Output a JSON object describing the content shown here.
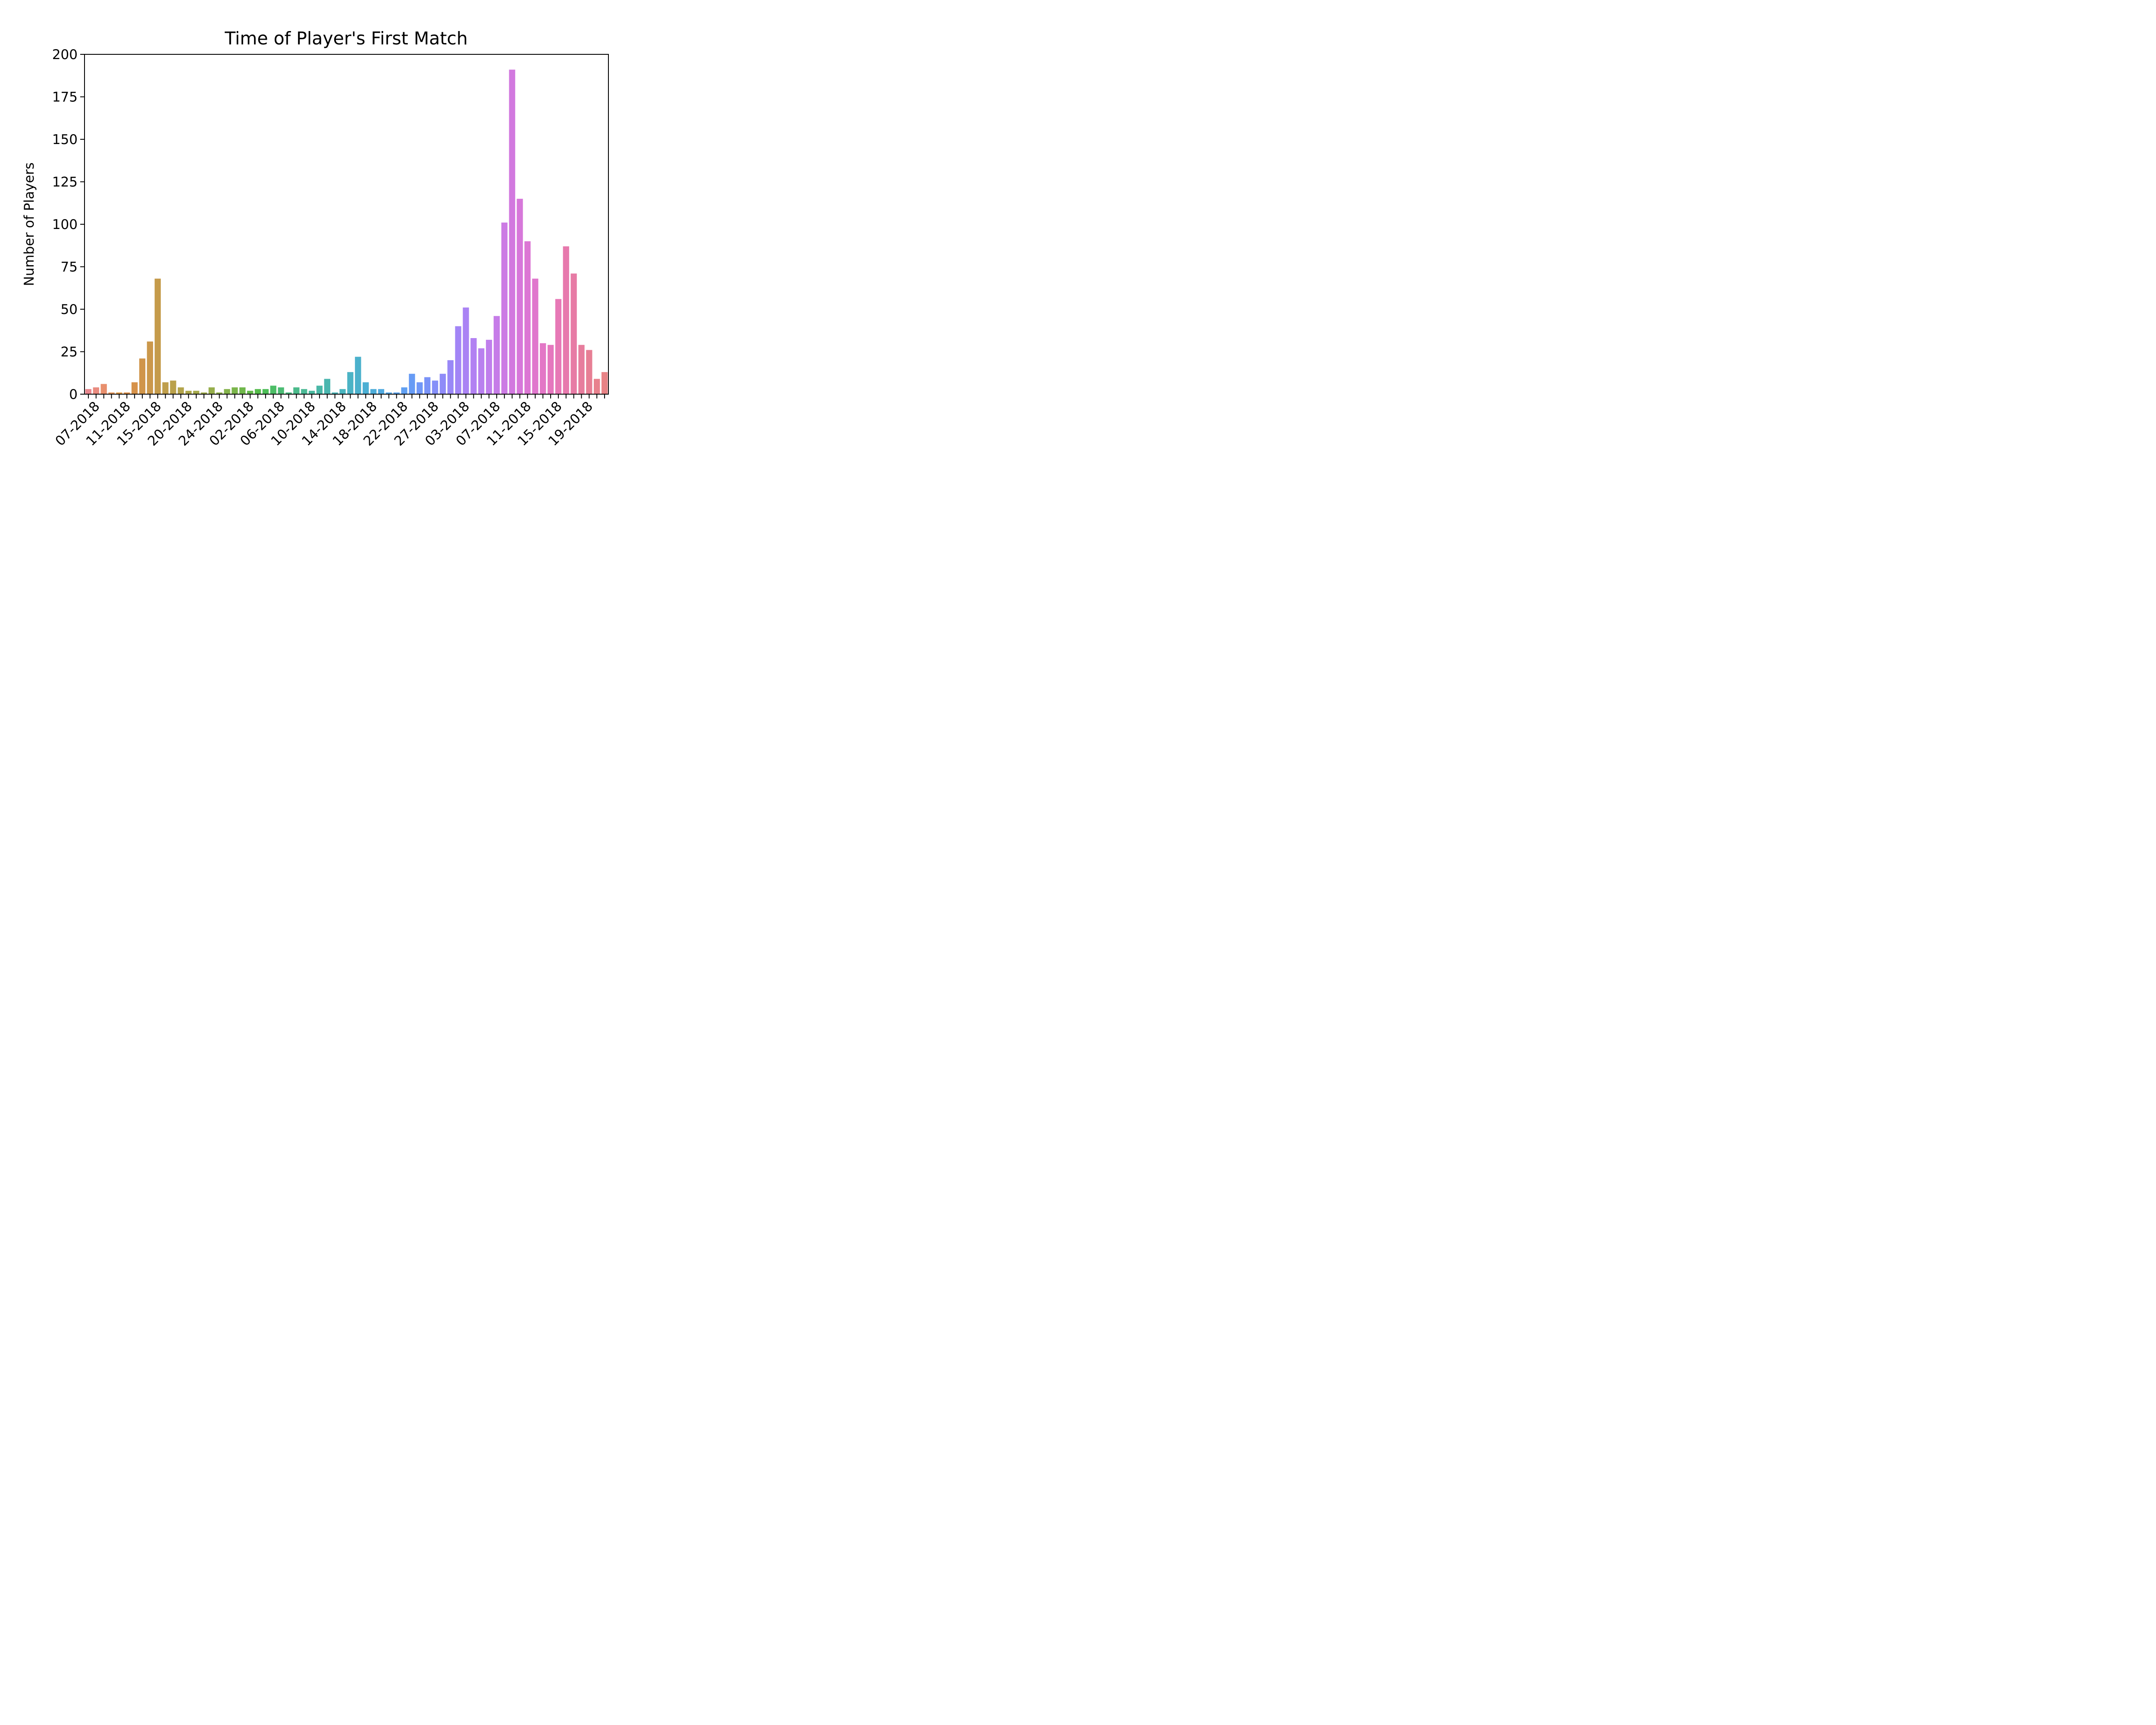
{
  "chart_data": {
    "type": "bar",
    "title": "Time of Player's First Match",
    "xlabel": "",
    "ylabel": "Number of Players",
    "ylim": [
      0,
      200
    ],
    "yticks": [
      0,
      25,
      50,
      75,
      100,
      125,
      150,
      175,
      200
    ],
    "grid": false,
    "legend": "none",
    "x_tick_labels": [
      "07-2018",
      "11-2018",
      "15-2018",
      "20-2018",
      "24-2018",
      "02-2018",
      "06-2018",
      "10-2018",
      "14-2018",
      "18-2018",
      "22-2018",
      "27-2018",
      "03-2018",
      "07-2018",
      "11-2018",
      "15-2018",
      "19-2018"
    ],
    "values": [
      3,
      4,
      6,
      1,
      1,
      1,
      7,
      21,
      31,
      68,
      7,
      8,
      4,
      2,
      2,
      1,
      4,
      1,
      3,
      4,
      4,
      2,
      3,
      3,
      5,
      4,
      1,
      4,
      3,
      2,
      5,
      9,
      1,
      3,
      13,
      22,
      7,
      3,
      3,
      1,
      1,
      4,
      12,
      7,
      10,
      8,
      12,
      20,
      40,
      51,
      33,
      27,
      32,
      46,
      101,
      191,
      115,
      90,
      68,
      30,
      29,
      56,
      87,
      71,
      29,
      26,
      9,
      13
    ],
    "colors": [
      "#e9878e",
      "#e98b7f",
      "#e88f6d",
      "#e59457",
      "#e19a44",
      "#dc8e48",
      "#d6924a",
      "#d0954a",
      "#cb984b",
      "#c59b4b",
      "#bf9e4b",
      "#baa14b",
      "#b3a44b",
      "#aca74b",
      "#a5a94b",
      "#9eac4b",
      "#96ae4b",
      "#8eb04b",
      "#84b34b",
      "#7ab54b",
      "#6fb74b",
      "#63b94b",
      "#55bb4b",
      "#4cbd57",
      "#4cbd66",
      "#4cbc74",
      "#4bbb80",
      "#4bba8b",
      "#4bb995",
      "#4ab89e",
      "#4ab7a7",
      "#4ab6af",
      "#4ab5b7",
      "#4ab4be",
      "#4bb3c5",
      "#4bb1cc",
      "#4cafd3",
      "#4eadd9",
      "#51aae0",
      "#55a7e6",
      "#5aa3ec",
      "#609ff1",
      "#679bf5",
      "#7097f7",
      "#7a93f8",
      "#858ff8",
      "#8f8bf8",
      "#9988f7",
      "#a285f6",
      "#aa83f4",
      "#b281f2",
      "#b980ef",
      "#c07eec",
      "#c67ce8",
      "#cc7be4",
      "#d279df",
      "#d778da",
      "#dc77d4",
      "#e077cd",
      "#e377c6",
      "#e577be",
      "#e778b6",
      "#e779ad",
      "#e77ba5",
      "#e77d9d",
      "#e77f95",
      "#e8818d",
      "#e88386"
    ]
  }
}
